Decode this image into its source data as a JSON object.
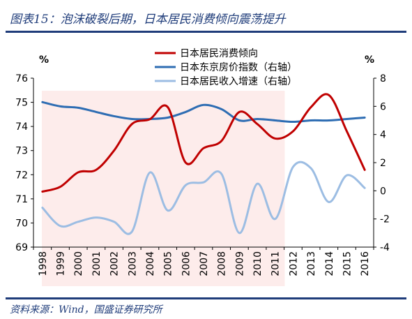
{
  "figure": {
    "title": "图表15：泡沫破裂后期，日本居民消费倾向震荡提升",
    "source": "资料来源：Wind，国盛证券研究所"
  },
  "chart_data": {
    "type": "line",
    "x": [
      "1998",
      "1999",
      "2000",
      "2001",
      "2002",
      "2003",
      "2004",
      "2005",
      "2006",
      "2007",
      "2008",
      "2009",
      "2010",
      "2011",
      "2012",
      "2013",
      "2014",
      "2015",
      "2016"
    ],
    "y_left": {
      "unit": "%",
      "ylim": [
        69,
        76
      ],
      "ticks": [
        69,
        70,
        71,
        72,
        73,
        74,
        75,
        76
      ]
    },
    "y_right": {
      "unit": "%",
      "ylim": [
        -4,
        8
      ],
      "ticks": [
        -4,
        -2,
        0,
        2,
        4,
        6,
        8
      ]
    },
    "shaded_range": [
      "1998",
      "2012"
    ],
    "shade_color": "#fdeceb",
    "legend_position": "top-center",
    "series": [
      {
        "name": "日本居民消费倾向",
        "axis": "left",
        "color": "#c00000",
        "values": [
          71.3,
          71.5,
          72.1,
          72.2,
          73.0,
          74.1,
          74.3,
          74.8,
          72.5,
          73.1,
          73.4,
          74.6,
          74.1,
          73.5,
          73.8,
          74.8,
          75.3,
          73.8,
          72.2
        ]
      },
      {
        "name": "日本东京房价指数（右轴）",
        "axis": "right",
        "color": "#2e6db3",
        "values": [
          6.3,
          6.0,
          5.9,
          5.6,
          5.3,
          5.1,
          5.1,
          5.2,
          5.6,
          6.1,
          5.8,
          5.0,
          5.1,
          5.0,
          4.9,
          5.0,
          5.0,
          5.1,
          5.2
        ]
      },
      {
        "name": "日本居民收入增速（右轴）",
        "axis": "right",
        "color": "#9cbde3",
        "values": [
          -1.2,
          -2.5,
          -2.2,
          -1.9,
          -2.2,
          -2.9,
          1.3,
          -1.4,
          0.4,
          0.6,
          1.2,
          -3.0,
          0.5,
          -2.0,
          1.7,
          1.6,
          -0.8,
          1.1,
          0.2
        ]
      }
    ]
  }
}
